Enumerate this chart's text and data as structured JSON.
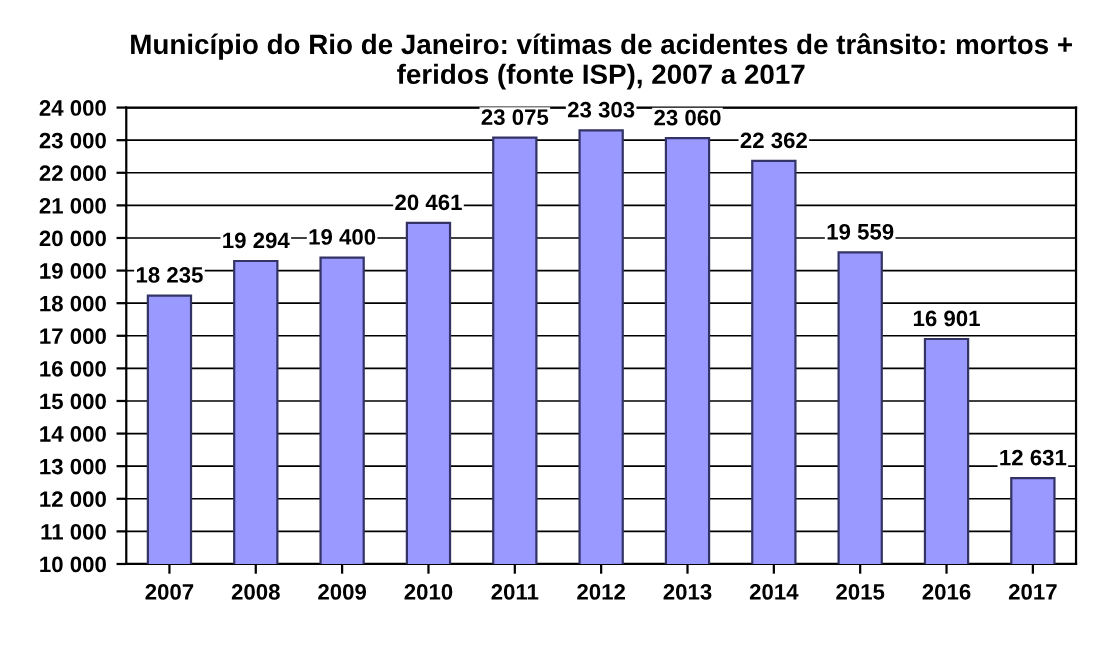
{
  "chart_data": {
    "type": "bar",
    "title": "Município do Rio de Janeiro: vítimas de acidentes de trânsito: mortos + feridos (fonte ISP), 2007 a 2017",
    "categories": [
      "2007",
      "2008",
      "2009",
      "2010",
      "2011",
      "2012",
      "2013",
      "2014",
      "2015",
      "2016",
      "2017"
    ],
    "values": [
      18235,
      19294,
      19400,
      20461,
      23075,
      23303,
      23060,
      22362,
      19559,
      16901,
      12631
    ],
    "value_labels": [
      "18 235",
      "19 294",
      "19 400",
      "20 461",
      "23 075",
      "23 303",
      "23 060",
      "22 362",
      "19 559",
      "16 901",
      "12 631"
    ],
    "color": "#9999ff",
    "ylim": [
      10000,
      24000
    ],
    "yticks": [
      {
        "value": 10000,
        "label": "10 000"
      },
      {
        "value": 11000,
        "label": "11 000"
      },
      {
        "value": 12000,
        "label": "12 000"
      },
      {
        "value": 13000,
        "label": "13 000"
      },
      {
        "value": 14000,
        "label": "14 000"
      },
      {
        "value": 15000,
        "label": "15 000"
      },
      {
        "value": 16000,
        "label": "16 000"
      },
      {
        "value": 17000,
        "label": "17 000"
      },
      {
        "value": 18000,
        "label": "18 000"
      },
      {
        "value": 19000,
        "label": "19 000"
      },
      {
        "value": 20000,
        "label": "20 000"
      },
      {
        "value": 21000,
        "label": "21 000"
      },
      {
        "value": 22000,
        "label": "22 000"
      },
      {
        "value": 23000,
        "label": "23 000"
      },
      {
        "value": 24000,
        "label": "24 000"
      }
    ],
    "grid": "y"
  }
}
